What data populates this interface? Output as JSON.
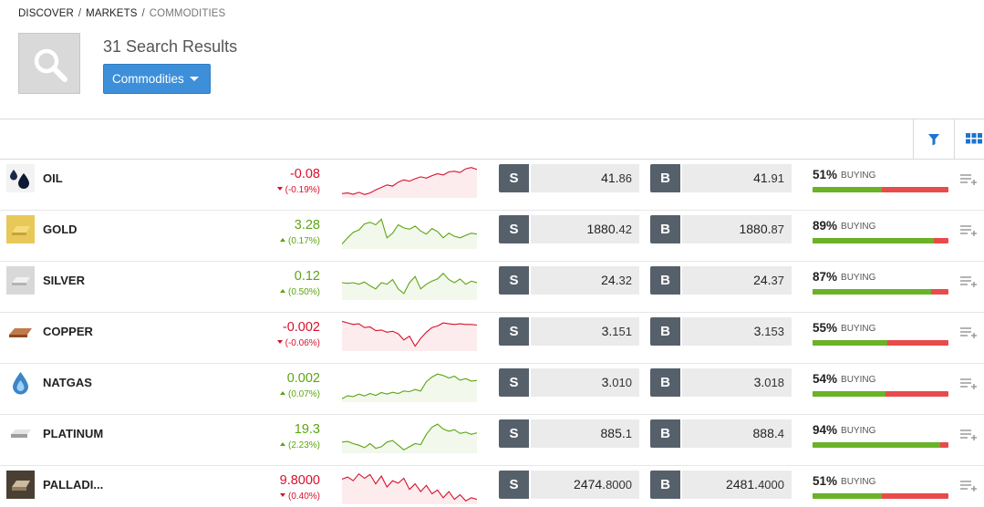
{
  "breadcrumb": [
    "DISCOVER",
    "MARKETS",
    "COMMODITIES"
  ],
  "header": {
    "results_title": "31 Search Results",
    "category_dropdown": "Commodities"
  },
  "colors": {
    "up": "#5ca510",
    "down": "#d8102b",
    "accent": "#3d8fd9",
    "buying_bar": "#6ab226",
    "selling_bar": "#e84b4b"
  },
  "instruments": [
    {
      "name": "OIL",
      "icon": "oil-drops-icon",
      "change": "-0.08",
      "pct": "(-0.19%)",
      "dir": "down",
      "sell_main": "41.",
      "sell_dec": "86",
      "buy_main": "41.",
      "buy_dec": "91",
      "buying_pct": "51%",
      "buying_label": "BUYING",
      "buying": 0.51,
      "spark": [
        0.08,
        0.1,
        0.06,
        0.12,
        0.05,
        0.1,
        0.2,
        0.28,
        0.36,
        0.32,
        0.45,
        0.52,
        0.48,
        0.56,
        0.62,
        0.58,
        0.66,
        0.72,
        0.68,
        0.78,
        0.8,
        0.76,
        0.88,
        0.92,
        0.86
      ]
    },
    {
      "name": "GOLD",
      "icon": "gold-bar-icon",
      "change": "3.28",
      "pct": "(0.17%)",
      "dir": "up",
      "sell_main": "1880.",
      "sell_dec": "42",
      "buy_main": "1880.",
      "buy_dec": "87",
      "buying_pct": "89%",
      "buying_label": "BUYING",
      "buying": 0.89,
      "spark": [
        0.1,
        0.3,
        0.48,
        0.55,
        0.75,
        0.8,
        0.72,
        0.9,
        0.3,
        0.45,
        0.72,
        0.62,
        0.58,
        0.68,
        0.52,
        0.42,
        0.6,
        0.5,
        0.3,
        0.45,
        0.35,
        0.3,
        0.38,
        0.45,
        0.42
      ]
    },
    {
      "name": "SILVER",
      "icon": "silver-bar-icon",
      "change": "0.12",
      "pct": "(0.50%)",
      "dir": "up",
      "sell_main": "24.",
      "sell_dec": "32",
      "buy_main": "24.",
      "buy_dec": "37",
      "buying_pct": "87%",
      "buying_label": "BUYING",
      "buying": 0.87,
      "spark": [
        0.5,
        0.48,
        0.5,
        0.45,
        0.52,
        0.4,
        0.3,
        0.5,
        0.45,
        0.6,
        0.3,
        0.15,
        0.5,
        0.7,
        0.3,
        0.45,
        0.55,
        0.62,
        0.8,
        0.6,
        0.5,
        0.62,
        0.45,
        0.55,
        0.5
      ]
    },
    {
      "name": "COPPER",
      "icon": "copper-bar-icon",
      "change": "-0.002",
      "pct": "(-0.06%)",
      "dir": "down",
      "sell_main": "3.",
      "sell_dec": "151",
      "buy_main": "3.",
      "buy_dec": "153",
      "buying_pct": "55%",
      "buying_label": "BUYING",
      "buying": 0.55,
      "spark": [
        0.9,
        0.85,
        0.8,
        0.82,
        0.7,
        0.72,
        0.6,
        0.62,
        0.55,
        0.58,
        0.5,
        0.3,
        0.42,
        0.1,
        0.35,
        0.55,
        0.7,
        0.75,
        0.85,
        0.82,
        0.8,
        0.82,
        0.8,
        0.8,
        0.78
      ]
    },
    {
      "name": "NATGAS",
      "icon": "gas-drop-icon",
      "change": "0.002",
      "pct": "(0.07%)",
      "dir": "up",
      "sell_main": "3.",
      "sell_dec": "010",
      "buy_main": "3.",
      "buy_dec": "018",
      "buying_pct": "54%",
      "buying_label": "BUYING",
      "buying": 0.54,
      "spark": [
        0.05,
        0.15,
        0.12,
        0.2,
        0.14,
        0.22,
        0.16,
        0.25,
        0.2,
        0.26,
        0.22,
        0.3,
        0.28,
        0.35,
        0.3,
        0.6,
        0.75,
        0.85,
        0.8,
        0.72,
        0.78,
        0.65,
        0.7,
        0.62,
        0.64
      ]
    },
    {
      "name": "PLATINUM",
      "icon": "platinum-bar-icon",
      "change": "19.3",
      "pct": "(2.23%)",
      "dir": "up",
      "sell_main": "885.",
      "sell_dec": "1",
      "buy_main": "888.",
      "buy_dec": "4",
      "buying_pct": "94%",
      "buying_label": "BUYING",
      "buying": 0.94,
      "spark": [
        0.3,
        0.32,
        0.25,
        0.2,
        0.12,
        0.25,
        0.1,
        0.15,
        0.3,
        0.35,
        0.2,
        0.05,
        0.15,
        0.25,
        0.22,
        0.55,
        0.78,
        0.88,
        0.72,
        0.65,
        0.7,
        0.58,
        0.62,
        0.55,
        0.6
      ]
    },
    {
      "name": "PALLADI...",
      "icon": "palladium-bar-icon",
      "change": "9.8000",
      "pct": "(0.40%)",
      "dir": "down",
      "sell_main": "2474.",
      "sell_dec": "8000",
      "buy_main": "2481.",
      "buy_dec": "4000",
      "buying_pct": "51%",
      "buying_label": "BUYING",
      "buying": 0.51,
      "spark": [
        0.75,
        0.82,
        0.7,
        0.92,
        0.78,
        0.9,
        0.6,
        0.85,
        0.5,
        0.7,
        0.62,
        0.78,
        0.42,
        0.6,
        0.35,
        0.55,
        0.28,
        0.4,
        0.15,
        0.35,
        0.1,
        0.25,
        0.05,
        0.15,
        0.1
      ]
    }
  ]
}
